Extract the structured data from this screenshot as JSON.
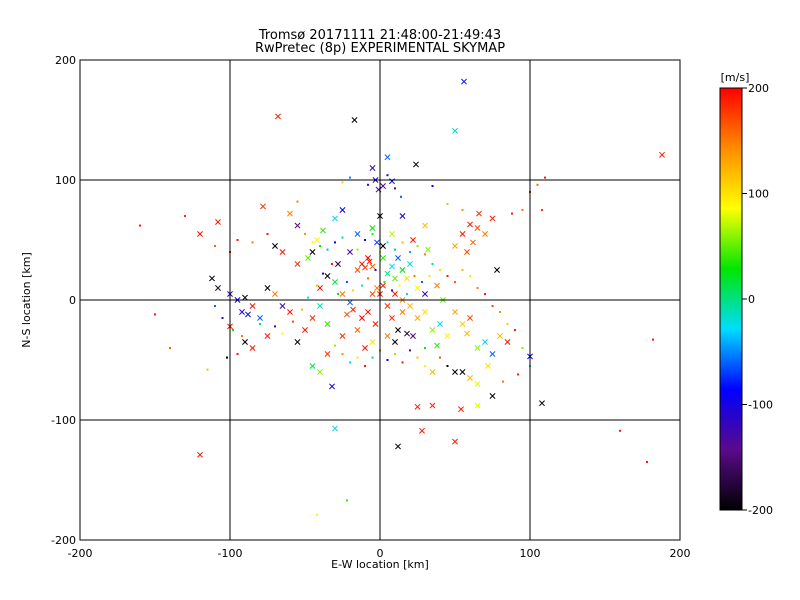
{
  "chart_data": {
    "type": "scatter",
    "title": "Tromsø 20171111 21:48:00-21:49:43",
    "subtitle": "RwPretec (8p) EXPERIMENTAL SKYMAP",
    "xlabel": "E-W location [km]",
    "ylabel": "N-S location [km]",
    "xlim": [
      -200,
      200
    ],
    "ylim": [
      -200,
      200
    ],
    "xticks": [
      -200,
      -100,
      0,
      100,
      200
    ],
    "yticks": [
      -200,
      -100,
      0,
      100,
      200
    ],
    "grid": true,
    "colorbar": {
      "label": "[m/s]",
      "min": -200,
      "max": 200,
      "ticks": [
        -200,
        -100,
        0,
        100,
        200
      ],
      "colors": [
        "#000000",
        "#5a0a8a",
        "#0000ff",
        "#00dcff",
        "#00e600",
        "#ffff00",
        "#ff8c00",
        "#ff0000"
      ]
    },
    "marker_legend": {
      "large": "x marker",
      "small": "dot marker"
    },
    "points": [
      [
        -68,
        153,
        190,
        1
      ],
      [
        -17,
        150,
        -200,
        1
      ],
      [
        56,
        182,
        -80,
        1
      ],
      [
        50,
        141,
        -10,
        1
      ],
      [
        188,
        121,
        190,
        1
      ],
      [
        5,
        119,
        -60,
        1
      ],
      [
        24,
        113,
        -200,
        1
      ],
      [
        -5,
        110,
        -120,
        1
      ],
      [
        -3,
        100,
        -110,
        1
      ],
      [
        2,
        95,
        -140,
        1
      ],
      [
        8,
        99,
        -90,
        1
      ],
      [
        -1,
        92,
        -130,
        1
      ],
      [
        5,
        104,
        -100,
        0
      ],
      [
        -8,
        96,
        -120,
        0
      ],
      [
        10,
        93,
        -150,
        0
      ],
      [
        14,
        86,
        -60,
        0
      ],
      [
        -120,
        55,
        190,
        1
      ],
      [
        -108,
        65,
        190,
        1
      ],
      [
        -78,
        78,
        180,
        1
      ],
      [
        -60,
        72,
        150,
        1
      ],
      [
        -55,
        62,
        -150,
        1
      ],
      [
        -42,
        50,
        90,
        1
      ],
      [
        -38,
        58,
        40,
        1
      ],
      [
        -30,
        68,
        -30,
        1
      ],
      [
        -25,
        75,
        -90,
        1
      ],
      [
        -45,
        40,
        -200,
        1
      ],
      [
        -20,
        40,
        -130,
        1
      ],
      [
        -28,
        30,
        -180,
        1
      ],
      [
        -35,
        20,
        -200,
        1
      ],
      [
        0,
        70,
        -200,
        1
      ],
      [
        15,
        70,
        -100,
        1
      ],
      [
        30,
        62,
        120,
        1
      ],
      [
        32,
        42,
        60,
        1
      ],
      [
        60,
        63,
        190,
        1
      ],
      [
        65,
        60,
        170,
        1
      ],
      [
        70,
        55,
        150,
        1
      ],
      [
        62,
        48,
        160,
        1
      ],
      [
        75,
        68,
        190,
        1
      ],
      [
        66,
        72,
        180,
        1
      ],
      [
        55,
        55,
        190,
        1
      ],
      [
        78,
        25,
        -200,
        1
      ],
      [
        58,
        40,
        170,
        1
      ],
      [
        50,
        45,
        130,
        1
      ],
      [
        -12,
        30,
        190,
        1
      ],
      [
        -10,
        27,
        180,
        1
      ],
      [
        -7,
        32,
        190,
        1
      ],
      [
        -15,
        25,
        170,
        1
      ],
      [
        -5,
        28,
        160,
        1
      ],
      [
        -8,
        35,
        200,
        1
      ],
      [
        2,
        35,
        40,
        1
      ],
      [
        8,
        28,
        -30,
        1
      ],
      [
        12,
        35,
        -60,
        1
      ],
      [
        15,
        25,
        20,
        1
      ],
      [
        20,
        30,
        -20,
        1
      ],
      [
        10,
        18,
        50,
        1
      ],
      [
        5,
        22,
        0,
        1
      ],
      [
        18,
        18,
        100,
        1
      ],
      [
        -2,
        10,
        150,
        1
      ],
      [
        0,
        5,
        190,
        1
      ],
      [
        5,
        -5,
        180,
        1
      ],
      [
        -8,
        -10,
        190,
        1
      ],
      [
        -12,
        -15,
        200,
        1
      ],
      [
        -3,
        -20,
        190,
        1
      ],
      [
        8,
        -15,
        180,
        1
      ],
      [
        15,
        -10,
        150,
        1
      ],
      [
        20,
        -5,
        120,
        1
      ],
      [
        25,
        -15,
        130,
        1
      ],
      [
        12,
        -25,
        -200,
        1
      ],
      [
        18,
        -28,
        -180,
        1
      ],
      [
        22,
        -30,
        -150,
        1
      ],
      [
        10,
        -35,
        -200,
        1
      ],
      [
        5,
        -30,
        150,
        1
      ],
      [
        -5,
        -35,
        100,
        1
      ],
      [
        -18,
        -8,
        190,
        1
      ],
      [
        -22,
        -12,
        170,
        1
      ],
      [
        -15,
        -25,
        160,
        1
      ],
      [
        -25,
        -30,
        180,
        1
      ],
      [
        -10,
        -40,
        190,
        1
      ],
      [
        -5,
        5,
        170,
        1
      ],
      [
        2,
        12,
        190,
        1
      ],
      [
        10,
        5,
        190,
        1
      ],
      [
        15,
        0,
        140,
        1
      ],
      [
        30,
        -10,
        100,
        1
      ],
      [
        35,
        -25,
        60,
        1
      ],
      [
        40,
        -20,
        -30,
        1
      ],
      [
        45,
        -30,
        90,
        1
      ],
      [
        38,
        -38,
        40,
        1
      ],
      [
        50,
        -10,
        130,
        1
      ],
      [
        55,
        -20,
        110,
        1
      ],
      [
        60,
        -15,
        170,
        1
      ],
      [
        58,
        -28,
        120,
        1
      ],
      [
        65,
        -40,
        60,
        1
      ],
      [
        70,
        -35,
        -30,
        1
      ],
      [
        75,
        -45,
        -60,
        1
      ],
      [
        72,
        -55,
        100,
        1
      ],
      [
        80,
        -30,
        120,
        1
      ],
      [
        85,
        -35,
        190,
        1
      ],
      [
        50,
        -60,
        -200,
        1
      ],
      [
        55,
        -60,
        -200,
        1
      ],
      [
        60,
        -65,
        120,
        1
      ],
      [
        65,
        -70,
        80,
        1
      ],
      [
        75,
        -80,
        -200,
        1
      ],
      [
        100,
        -47,
        -90,
        1
      ],
      [
        108,
        -86,
        -200,
        1
      ],
      [
        54,
        -91,
        190,
        1
      ],
      [
        65,
        -88,
        80,
        1
      ],
      [
        -112,
        18,
        -200,
        1
      ],
      [
        -108,
        10,
        -180,
        1
      ],
      [
        -100,
        5,
        -120,
        1
      ],
      [
        -95,
        0,
        -100,
        1
      ],
      [
        -90,
        2,
        -200,
        1
      ],
      [
        -85,
        -5,
        190,
        1
      ],
      [
        -92,
        -10,
        -110,
        1
      ],
      [
        -88,
        -12,
        -90,
        1
      ],
      [
        -80,
        -15,
        -60,
        1
      ],
      [
        -75,
        10,
        -200,
        1
      ],
      [
        -70,
        5,
        150,
        1
      ],
      [
        -65,
        -5,
        -120,
        1
      ],
      [
        -60,
        -10,
        190,
        1
      ],
      [
        -100,
        -22,
        190,
        1
      ],
      [
        -90,
        -35,
        -200,
        1
      ],
      [
        -85,
        -40,
        190,
        1
      ],
      [
        -75,
        -30,
        190,
        1
      ],
      [
        -55,
        -35,
        -200,
        1
      ],
      [
        -50,
        -25,
        190,
        1
      ],
      [
        -45,
        -15,
        180,
        1
      ],
      [
        -40,
        -5,
        -10,
        1
      ],
      [
        -35,
        -20,
        40,
        1
      ],
      [
        -35,
        -45,
        180,
        1
      ],
      [
        -40,
        -60,
        60,
        1
      ],
      [
        -32,
        -72,
        -90,
        1
      ],
      [
        -30,
        -107,
        -30,
        1
      ],
      [
        -45,
        -55,
        10,
        1
      ],
      [
        -120,
        -129,
        190,
        1
      ],
      [
        12,
        -122,
        -200,
        1
      ],
      [
        28,
        -109,
        190,
        1
      ],
      [
        35,
        -88,
        190,
        1
      ],
      [
        50,
        -118,
        190,
        1
      ],
      [
        25,
        -89,
        190,
        1
      ],
      [
        35,
        -60,
        120,
        1
      ],
      [
        -40,
        10,
        190,
        1
      ],
      [
        -55,
        30,
        180,
        1
      ],
      [
        -65,
        40,
        190,
        1
      ],
      [
        -70,
        45,
        -200,
        1
      ],
      [
        -48,
        35,
        50,
        1
      ],
      [
        -30,
        15,
        10,
        1
      ],
      [
        -25,
        5,
        150,
        1
      ],
      [
        -20,
        -2,
        -60,
        1
      ],
      [
        25,
        10,
        90,
        1
      ],
      [
        30,
        5,
        -120,
        1
      ],
      [
        38,
        12,
        150,
        1
      ],
      [
        42,
        0,
        50,
        1
      ],
      [
        -15,
        55,
        -60,
        1
      ],
      [
        -5,
        60,
        30,
        1
      ],
      [
        8,
        55,
        70,
        1
      ],
      [
        22,
        50,
        190,
        1
      ],
      [
        2,
        45,
        -200,
        1
      ],
      [
        -2,
        48,
        -70,
        1
      ],
      [
        -75,
        55,
        190,
        0
      ],
      [
        -85,
        48,
        150,
        0
      ],
      [
        -95,
        50,
        190,
        0
      ],
      [
        -100,
        40,
        180,
        0
      ],
      [
        -110,
        45,
        160,
        0
      ],
      [
        -50,
        55,
        140,
        0
      ],
      [
        -45,
        48,
        90,
        0
      ],
      [
        -40,
        45,
        30,
        0
      ],
      [
        -35,
        42,
        -40,
        0
      ],
      [
        -30,
        48,
        -90,
        0
      ],
      [
        -25,
        52,
        0,
        0
      ],
      [
        -15,
        42,
        60,
        0
      ],
      [
        -10,
        50,
        -100,
        0
      ],
      [
        -5,
        55,
        40,
        0
      ],
      [
        0,
        40,
        80,
        0
      ],
      [
        5,
        48,
        -20,
        0
      ],
      [
        10,
        42,
        10,
        0
      ],
      [
        15,
        48,
        120,
        0
      ],
      [
        20,
        40,
        -40,
        0
      ],
      [
        25,
        45,
        60,
        0
      ],
      [
        30,
        38,
        150,
        0
      ],
      [
        35,
        30,
        -10,
        0
      ],
      [
        40,
        25,
        100,
        0
      ],
      [
        45,
        20,
        190,
        0
      ],
      [
        50,
        15,
        160,
        0
      ],
      [
        55,
        25,
        120,
        0
      ],
      [
        60,
        20,
        80,
        0
      ],
      [
        65,
        10,
        150,
        0
      ],
      [
        70,
        5,
        190,
        0
      ],
      [
        75,
        -5,
        170,
        0
      ],
      [
        80,
        -10,
        140,
        0
      ],
      [
        85,
        -20,
        110,
        0
      ],
      [
        90,
        -25,
        190,
        0
      ],
      [
        95,
        -40,
        60,
        0
      ],
      [
        100,
        -55,
        -30,
        0
      ],
      [
        92,
        -62,
        190,
        0
      ],
      [
        82,
        -68,
        150,
        0
      ],
      [
        -110,
        -5,
        -60,
        0
      ],
      [
        -105,
        -15,
        -120,
        0
      ],
      [
        -98,
        -25,
        30,
        0
      ],
      [
        -92,
        -30,
        150,
        0
      ],
      [
        -102,
        -48,
        -200,
        0
      ],
      [
        -95,
        -45,
        190,
        0
      ],
      [
        -80,
        -20,
        0,
        0
      ],
      [
        -70,
        -22,
        -150,
        0
      ],
      [
        -65,
        -28,
        90,
        0
      ],
      [
        -58,
        -18,
        170,
        0
      ],
      [
        -52,
        -8,
        120,
        0
      ],
      [
        -48,
        2,
        -30,
        0
      ],
      [
        -42,
        12,
        60,
        0
      ],
      [
        -38,
        22,
        -100,
        0
      ],
      [
        -32,
        30,
        190,
        0
      ],
      [
        -28,
        5,
        30,
        0
      ],
      [
        -22,
        15,
        -60,
        0
      ],
      [
        -18,
        8,
        110,
        0
      ],
      [
        -12,
        12,
        -20,
        0
      ],
      [
        -8,
        18,
        160,
        0
      ],
      [
        -3,
        25,
        -80,
        0
      ],
      [
        3,
        15,
        40,
        0
      ],
      [
        8,
        8,
        -120,
        0
      ],
      [
        13,
        12,
        90,
        0
      ],
      [
        18,
        5,
        -30,
        0
      ],
      [
        23,
        20,
        150,
        0
      ],
      [
        28,
        15,
        -60,
        0
      ],
      [
        33,
        20,
        100,
        0
      ],
      [
        -30,
        -38,
        60,
        0
      ],
      [
        -25,
        -45,
        140,
        0
      ],
      [
        -20,
        -52,
        -20,
        0
      ],
      [
        -15,
        -48,
        100,
        0
      ],
      [
        -10,
        -55,
        190,
        0
      ],
      [
        -5,
        -48,
        0,
        0
      ],
      [
        0,
        -42,
        150,
        0
      ],
      [
        5,
        -50,
        -90,
        0
      ],
      [
        10,
        -45,
        60,
        0
      ],
      [
        15,
        -52,
        190,
        0
      ],
      [
        20,
        -42,
        -150,
        0
      ],
      [
        25,
        -48,
        120,
        0
      ],
      [
        30,
        -40,
        30,
        0
      ],
      [
        40,
        -48,
        170,
        0
      ],
      [
        45,
        -55,
        -200,
        0
      ],
      [
        30,
        -55,
        90,
        0
      ],
      [
        110,
        102,
        190,
        0
      ],
      [
        105,
        96,
        160,
        0
      ],
      [
        100,
        90,
        190,
        0
      ],
      [
        108,
        75,
        180,
        0
      ],
      [
        95,
        75,
        150,
        0
      ],
      [
        88,
        72,
        190,
        0
      ],
      [
        160,
        -109,
        190,
        0
      ],
      [
        178,
        -135,
        190,
        0
      ],
      [
        182,
        -33,
        190,
        0
      ],
      [
        -160,
        62,
        190,
        0
      ],
      [
        -130,
        70,
        180,
        0
      ],
      [
        -42,
        -179,
        80,
        0
      ],
      [
        -22,
        -167,
        40,
        0
      ],
      [
        55,
        75,
        140,
        0
      ],
      [
        45,
        80,
        60,
        0
      ],
      [
        35,
        95,
        -90,
        0
      ],
      [
        -25,
        98,
        110,
        0
      ],
      [
        -20,
        102,
        -50,
        0
      ],
      [
        -55,
        82,
        150,
        0
      ],
      [
        -150,
        -12,
        190,
        0
      ],
      [
        -140,
        -40,
        160,
        0
      ],
      [
        -115,
        -58,
        120,
        0
      ]
    ]
  }
}
